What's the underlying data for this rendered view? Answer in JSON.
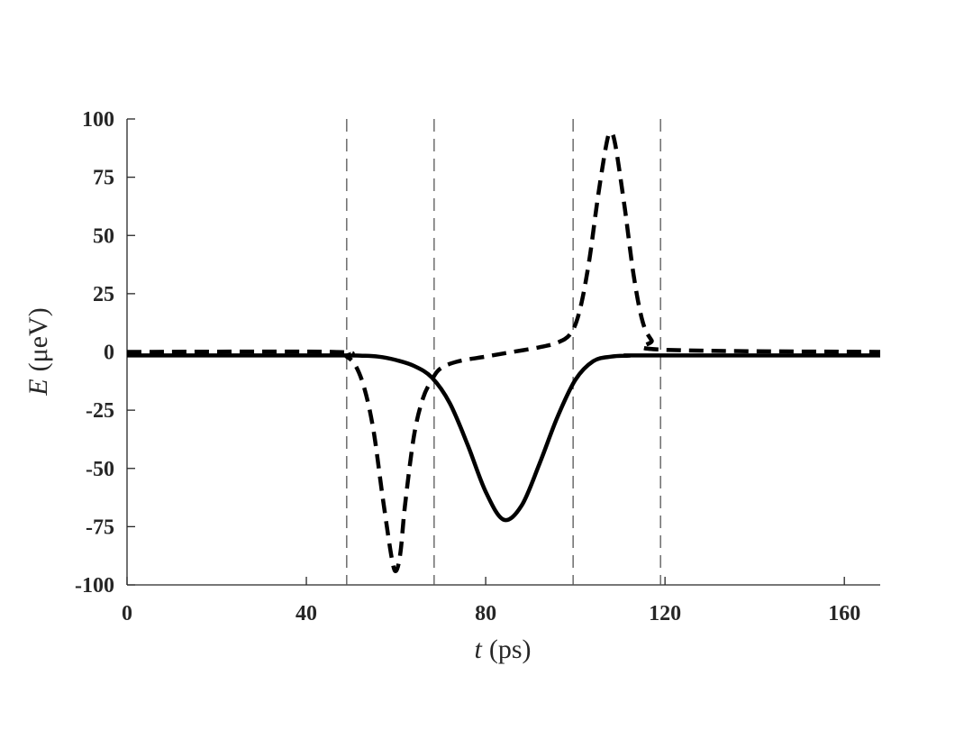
{
  "chart_data": {
    "type": "line",
    "xlabel_var": "t",
    "xlabel_unit": "(ps)",
    "ylabel_var": "E",
    "ylabel_unit": "(μeV)",
    "xlim": [
      0,
      168
    ],
    "ylim": [
      -100,
      100
    ],
    "xticks": [
      0,
      40,
      80,
      120,
      160
    ],
    "yticks": [
      -100,
      -75,
      -50,
      -25,
      0,
      25,
      50,
      75,
      100
    ],
    "xtick_labels": [
      "0",
      "40",
      "80",
      "120",
      "160"
    ],
    "ytick_labels": [
      "-100",
      "-75",
      "-50",
      "-25",
      "0",
      "25",
      "50",
      "75",
      "100"
    ],
    "grid": false,
    "vertical_lines": [
      49,
      68.5,
      99.5,
      119
    ],
    "series": [
      {
        "style": "solid",
        "color": "#000000",
        "x": [
          0,
          40,
          48,
          52,
          56,
          60,
          64,
          68,
          72,
          76,
          80,
          84,
          88,
          92,
          96,
          100,
          104,
          108,
          112,
          116,
          168
        ],
        "y": [
          -1.5,
          -1.5,
          -1.5,
          -1.6,
          -2,
          -3.5,
          -6,
          -11,
          -22,
          -40,
          -60,
          -72,
          -66,
          -48,
          -28,
          -12,
          -4,
          -2,
          -1.6,
          -1.5,
          -1.5
        ]
      },
      {
        "style": "dashed",
        "color": "#000000",
        "x": [
          0,
          46,
          49,
          51,
          53,
          55,
          57,
          59,
          60,
          61,
          62,
          64,
          66,
          68,
          70,
          74,
          80,
          86,
          92,
          96,
          99,
          101,
          103,
          105,
          107,
          108,
          109,
          111,
          113,
          115,
          117,
          119,
          168
        ],
        "y": [
          0,
          0,
          -2,
          -6,
          -16,
          -34,
          -62,
          -88,
          -94,
          -86,
          -66,
          -36,
          -20,
          -12,
          -7,
          -4,
          -2,
          0,
          2,
          4,
          8,
          18,
          38,
          66,
          90,
          94,
          88,
          62,
          33,
          13,
          5,
          1,
          0
        ]
      }
    ]
  }
}
